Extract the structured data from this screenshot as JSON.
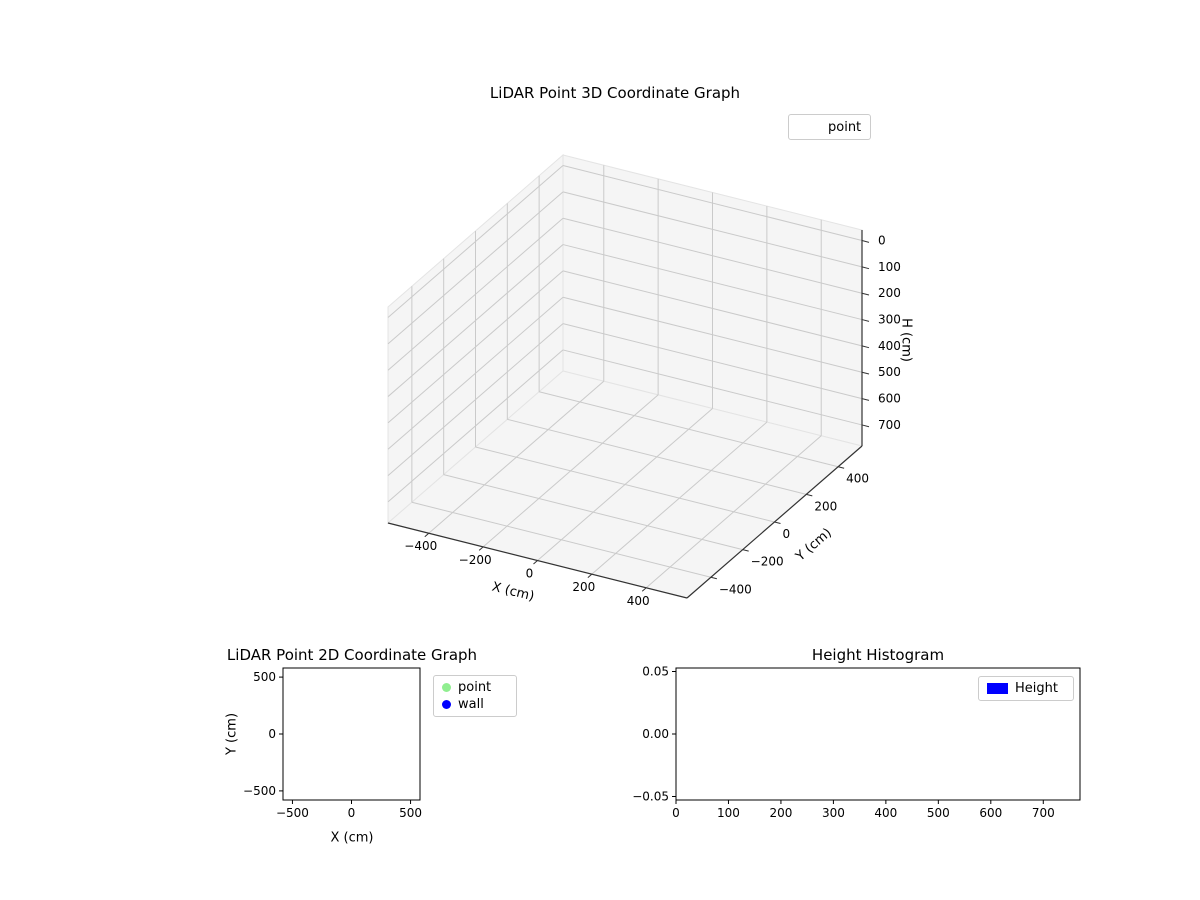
{
  "figure": {
    "background": "#ffffff"
  },
  "chart_data": [
    {
      "id": "lidar_3d",
      "type": "scatter3d",
      "title": "LiDAR Point 3D Coordinate Graph",
      "xlabel": "X (cm)",
      "ylabel": "Y (cm)",
      "zlabel": "H (cm)",
      "xticks": [
        -400,
        -200,
        0,
        200,
        400
      ],
      "yticks": [
        -400,
        -200,
        0,
        200,
        400
      ],
      "zticks": [
        0,
        100,
        200,
        300,
        400,
        500,
        600,
        700
      ],
      "xlim": [
        -550,
        550
      ],
      "ylim": [
        -550,
        550
      ],
      "zlim": [
        -40,
        780
      ],
      "z_axis_inverted": true,
      "grid": true,
      "pane_color": "#f5f5f5",
      "grid_color": "#cacaca",
      "legend": {
        "position": "upper right",
        "entries": [
          {
            "label": "point",
            "marker": "none",
            "color": ""
          }
        ]
      },
      "series": [
        {
          "name": "point",
          "points": []
        }
      ]
    },
    {
      "id": "lidar_2d",
      "type": "scatter",
      "title": "LiDAR Point 2D Coordinate Graph",
      "xlabel": "X (cm)",
      "ylabel": "Y (cm)",
      "xticks": [
        -500,
        0,
        500
      ],
      "yticks": [
        -500,
        0,
        500
      ],
      "xlim": [
        -580,
        580
      ],
      "ylim": [
        -580,
        580
      ],
      "grid": false,
      "legend": {
        "position": "outside upper right",
        "entries": [
          {
            "label": "point",
            "marker": "circle",
            "color": "#90ee90"
          },
          {
            "label": "wall",
            "marker": "circle",
            "color": "#0000ff"
          }
        ]
      },
      "series": [
        {
          "name": "point",
          "color": "#90ee90",
          "points": []
        },
        {
          "name": "wall",
          "color": "#0000ff",
          "points": []
        }
      ]
    },
    {
      "id": "height_hist",
      "type": "bar",
      "title": "Height Histogram",
      "xlabel": "",
      "ylabel": "",
      "xticks": [
        0,
        100,
        200,
        300,
        400,
        500,
        600,
        700
      ],
      "yticks": [
        "-0.05",
        "0.00",
        "0.05"
      ],
      "xlim": [
        0,
        770
      ],
      "ylim": [
        -0.0528,
        0.0528
      ],
      "grid": false,
      "legend": {
        "position": "upper right",
        "entries": [
          {
            "label": "Height",
            "marker": "rect",
            "color": "#0000ff"
          }
        ]
      },
      "series": [
        {
          "name": "Height",
          "color": "#0000ff",
          "values": []
        }
      ]
    }
  ]
}
